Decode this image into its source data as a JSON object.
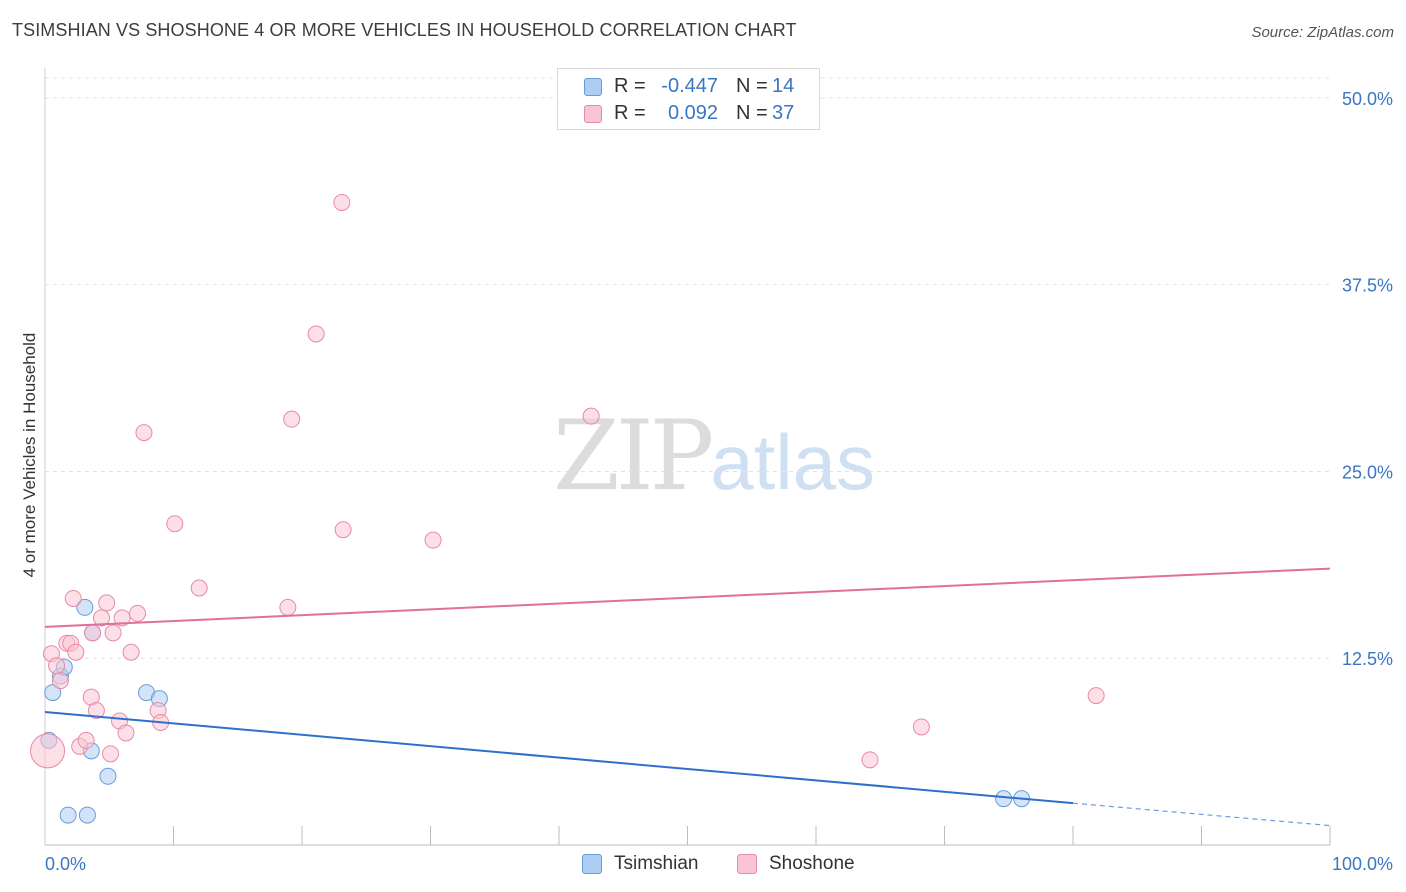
{
  "title": "TSIMSHIAN VS SHOSHONE 4 OR MORE VEHICLES IN HOUSEHOLD CORRELATION CHART",
  "source": "Source: ZipAtlas.com",
  "watermark": {
    "zip": "ZIP",
    "atlas": "atlas"
  },
  "legend": {
    "rows": [
      {
        "r_label": "R =",
        "r_value": "-0.447",
        "n_label": "N =",
        "n_value": "14"
      },
      {
        "r_label": "R =",
        "r_value": "0.092",
        "n_label": "N =",
        "n_value": "37"
      }
    ]
  },
  "bottom_legend": [
    "Tsimshian",
    "Shoshone"
  ],
  "colors": {
    "tsimshian_fill": "#aecdf2",
    "tsimshian_stroke": "#6a9bd8",
    "tsimshian_line": "#2f6fcc",
    "shoshone_fill": "#f9c4d3",
    "shoshone_stroke": "#e88aa7",
    "shoshone_line": "#e0709a",
    "tick_label": "#3a76c4",
    "grid": "#e2e2e2"
  },
  "chart_data": {
    "type": "scatter",
    "title": "TSIMSHIAN VS SHOSHONE 4 OR MORE VEHICLES IN HOUSEHOLD CORRELATION CHART",
    "xlabel": "",
    "ylabel": "4 or more Vehicles in Household",
    "xlim": [
      0,
      100
    ],
    "ylim": [
      0,
      52
    ],
    "x_tick_labels": [
      "0.0%",
      "100.0%"
    ],
    "y_ticks": [
      12.5,
      25.0,
      37.5,
      50.0
    ],
    "y_tick_labels": [
      "12.5%",
      "25.0%",
      "37.5%",
      "50.0%"
    ],
    "series": [
      {
        "name": "Tsimshian",
        "points": [
          [
            0.3,
            7.0
          ],
          [
            0.6,
            10.2
          ],
          [
            1.2,
            11.3
          ],
          [
            1.5,
            11.9
          ],
          [
            1.8,
            2.0
          ],
          [
            3.3,
            2.0
          ],
          [
            3.7,
            14.2
          ],
          [
            3.1,
            15.9
          ],
          [
            3.6,
            6.3
          ],
          [
            4.9,
            4.6
          ],
          [
            7.9,
            10.2
          ],
          [
            8.9,
            9.8
          ],
          [
            74.6,
            3.1
          ],
          [
            76.0,
            3.1
          ]
        ],
        "trend": {
          "x0": 0,
          "y0": 8.9,
          "x1": 80,
          "y1": 2.8,
          "dash_to_x": 100,
          "dash_to_y": 1.3
        }
      },
      {
        "name": "Shoshone",
        "points": [
          [
            0.2,
            6.3,
            "big"
          ],
          [
            0.5,
            12.8
          ],
          [
            0.9,
            12.0
          ],
          [
            1.2,
            11.0
          ],
          [
            1.7,
            13.5
          ],
          [
            2.0,
            13.5
          ],
          [
            2.2,
            16.5
          ],
          [
            2.4,
            12.9
          ],
          [
            2.7,
            6.6
          ],
          [
            3.2,
            7.0
          ],
          [
            3.6,
            9.9
          ],
          [
            3.7,
            14.2
          ],
          [
            4.0,
            9.0
          ],
          [
            4.4,
            15.2
          ],
          [
            4.8,
            16.2
          ],
          [
            5.1,
            6.1
          ],
          [
            5.3,
            14.2
          ],
          [
            5.8,
            8.3
          ],
          [
            6.0,
            15.2
          ],
          [
            6.3,
            7.5
          ],
          [
            6.7,
            12.9
          ],
          [
            7.2,
            15.5
          ],
          [
            7.7,
            27.6
          ],
          [
            8.8,
            9.0
          ],
          [
            9.0,
            8.2
          ],
          [
            10.1,
            21.5
          ],
          [
            12.0,
            17.2
          ],
          [
            18.9,
            15.9
          ],
          [
            19.2,
            28.5
          ],
          [
            21.1,
            34.2
          ],
          [
            23.1,
            43.0
          ],
          [
            23.2,
            21.1
          ],
          [
            30.2,
            20.4
          ],
          [
            42.5,
            28.7
          ],
          [
            64.2,
            5.7
          ],
          [
            68.2,
            7.9
          ],
          [
            81.8,
            10.0
          ]
        ],
        "trend": {
          "x0": 0,
          "y0": 14.6,
          "x1": 100,
          "y1": 18.5
        }
      }
    ]
  }
}
